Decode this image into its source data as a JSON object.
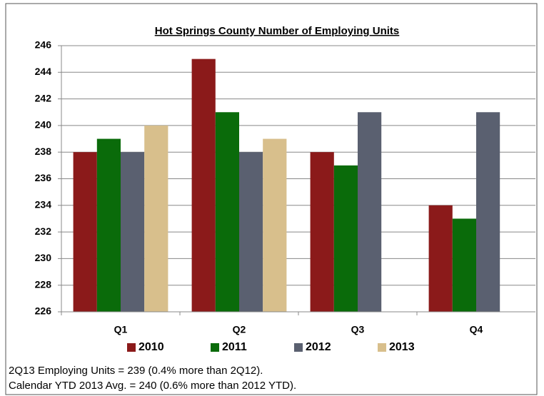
{
  "chart_data": {
    "type": "bar",
    "title": "Hot Springs County Number of Employing Units",
    "categories": [
      "Q1",
      "Q2",
      "Q3",
      "Q4"
    ],
    "series": [
      {
        "name": "2010",
        "color": "#8b1a1a",
        "values": [
          238,
          245,
          238,
          234
        ]
      },
      {
        "name": "2011",
        "color": "#0a6b0a",
        "values": [
          239,
          241,
          237,
          233
        ]
      },
      {
        "name": "2012",
        "color": "#5a6070",
        "values": [
          238,
          238,
          241,
          241
        ]
      },
      {
        "name": "2013",
        "color": "#d8bf8c",
        "values": [
          240,
          239,
          null,
          null
        ]
      }
    ],
    "ylim": [
      226,
      246
    ],
    "yticks": [
      226,
      228,
      230,
      232,
      234,
      236,
      238,
      240,
      242,
      244,
      246
    ],
    "grid": true,
    "legend": "bottom",
    "notes": [
      "2Q13 Employing Units = 239 (0.4% more than 2Q12).",
      "Calendar YTD 2013 Avg. = 240 (0.6% more than 2012 YTD)."
    ]
  }
}
